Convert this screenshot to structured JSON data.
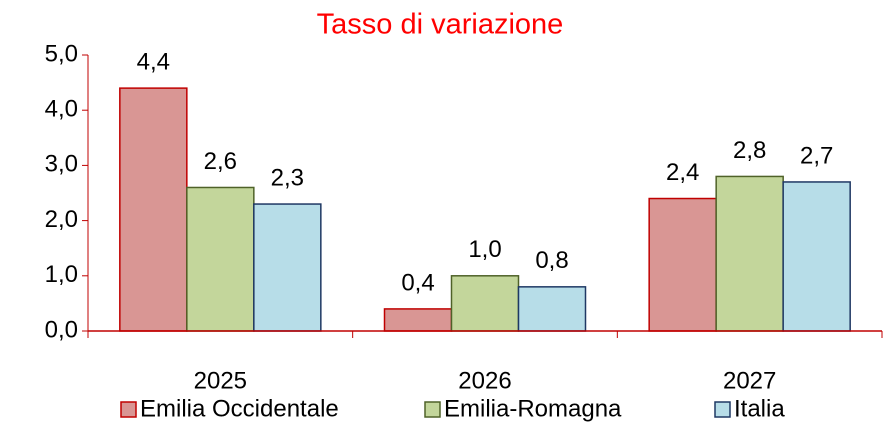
{
  "chart_data": {
    "type": "bar",
    "title": "Tasso di variazione",
    "categories": [
      "2025",
      "2026",
      "2027"
    ],
    "series": [
      {
        "name": "Emilia Occidentale",
        "color": "#d99694",
        "stroke": "#c00000",
        "values": [
          4.4,
          0.4,
          2.4
        ],
        "value_labels": [
          "4,4",
          "0,4",
          "2,4"
        ]
      },
      {
        "name": "Emilia-Romagna",
        "color": "#c3d69b",
        "stroke": "#4f6228",
        "values": [
          2.6,
          1.0,
          2.8
        ],
        "value_labels": [
          "2,6",
          "1,0",
          "2,8"
        ]
      },
      {
        "name": "Italia",
        "color": "#b7dde8",
        "stroke": "#1f3864",
        "values": [
          2.3,
          0.8,
          2.7
        ],
        "value_labels": [
          "2,3",
          "0,8",
          "2,7"
        ]
      }
    ],
    "ylim": [
      0,
      5
    ],
    "yticks": [
      {
        "value": 0,
        "label": "0,0"
      },
      {
        "value": 1,
        "label": "1,0"
      },
      {
        "value": 2,
        "label": "2,0"
      },
      {
        "value": 3,
        "label": "3,0"
      },
      {
        "value": 4,
        "label": "4,0"
      },
      {
        "value": 5,
        "label": "5,0"
      }
    ],
    "grid": false,
    "legend": "bottom"
  }
}
